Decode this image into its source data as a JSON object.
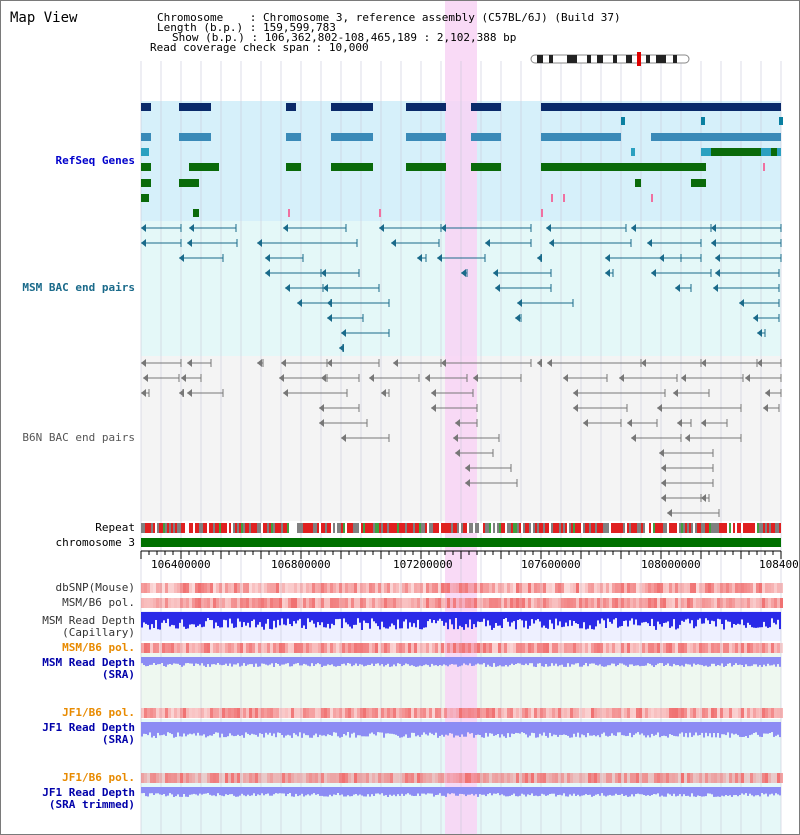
{
  "title": "Map View",
  "info": {
    "chromosome_label": "Chromosome",
    "chromosome_value": "Chromosome 3, reference assembly (C57BL/6J) (Build 37)",
    "length_label": "Length (b.p.)",
    "length_value": "159,599,783",
    "show_label": "Show (b.p.)",
    "show_value": "106,362,802-108,465,189 : 2,102,388 bp",
    "coverage_label": "Read coverage check span",
    "coverage_value": "10,000"
  },
  "tracks": {
    "refseq": "RefSeq Genes",
    "msm_bac": "MSM BAC end pairs",
    "b6n_bac": "B6N BAC end pairs",
    "repeat": "Repeat",
    "chromosome": "chromosome 3",
    "dbsnp": "dbSNP(Mouse)",
    "msm_b6_pol_1": "MSM/B6 pol.",
    "msm_read_depth_cap_1": "MSM Read Depth",
    "msm_read_depth_cap_2": "(Capillary)",
    "msm_b6_pol_2": "MSM/B6 pol.",
    "msm_read_depth_sra_1": "MSM Read Depth",
    "msm_read_depth_sra_2": "(SRA)",
    "jf1_b6_pol_1": "JF1/B6 pol.",
    "jf1_read_depth_sra_1": "JF1 Read Depth",
    "jf1_read_depth_sra_2": "(SRA)",
    "jf1_b6_pol_2": "JF1/B6 pol.",
    "jf1_read_depth_trim_1": "JF1 Read Depth",
    "jf1_read_depth_trim_2": "(SRA trimmed)"
  },
  "axis_ticks": [
    "106400000",
    "106800000",
    "107200000",
    "107600000",
    "108000000",
    "108400"
  ],
  "colors": {
    "refseq_bg": "#d6f0fa",
    "msm_bac_bg": "#e4f8f8",
    "b6n_bac_bg": "#f4f4f4",
    "highlight": "#f8d4f4",
    "refseq_label": "#0000cc",
    "msm_label": "#1a6a8a",
    "b6n_label": "#555555",
    "orange_label": "#e88a00",
    "blue_label": "#0000aa",
    "chromosome_bar": "#007000",
    "depth_fill": "#2a2ae8",
    "depth_fill_light": "#8c8cf4",
    "pol_fill": "#f07070"
  }
}
